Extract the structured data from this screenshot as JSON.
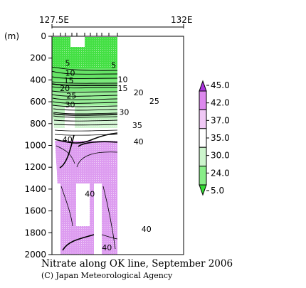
{
  "chart_data": {
    "type": "heatmap",
    "title": "Nitrate along OK line, September 2006",
    "credit": "(C) Japan Meteorological Agency",
    "xlabel": "",
    "ylabel": "(m)",
    "x_ticks": [
      "127.5E",
      "132E"
    ],
    "y_ticks": [
      0,
      200,
      400,
      600,
      800,
      1000,
      1200,
      1400,
      1600,
      1800,
      2000
    ],
    "ylim": [
      0,
      2000
    ],
    "y_reversed": true,
    "legend": {
      "levels": [
        5.0,
        24.0,
        30.0,
        35.0,
        37.0,
        42.0,
        45.0
      ],
      "labels": [
        "45.0",
        "42.0",
        "37.0",
        "35.0",
        "30.0",
        "24.0",
        "5.0"
      ],
      "colors_bottom_to_top": [
        "#33dd33",
        "#88ee88",
        "#ccf5cc",
        "#ffffff",
        "#f0c8f5",
        "#dd88ee",
        "#aa33dd"
      ],
      "placement": "right"
    },
    "contour_labels": [
      {
        "text": "5",
        "depth": 270,
        "offset": 0.1
      },
      {
        "text": "10",
        "depth": 360,
        "offset": 0.1
      },
      {
        "text": "15",
        "depth": 430,
        "offset": 0.09
      },
      {
        "text": "20",
        "depth": 500,
        "offset": 0.06
      },
      {
        "text": "25",
        "depth": 570,
        "offset": 0.11
      },
      {
        "text": "30",
        "depth": 650,
        "offset": 0.1
      },
      {
        "text": "5",
        "depth": 290,
        "offset": 0.45
      },
      {
        "text": "10",
        "depth": 420,
        "offset": 0.5
      },
      {
        "text": "15",
        "depth": 500,
        "offset": 0.5
      },
      {
        "text": "20",
        "depth": 540,
        "offset": 0.62
      },
      {
        "text": "25",
        "depth": 620,
        "offset": 0.74
      },
      {
        "text": "30",
        "depth": 720,
        "offset": 0.51
      },
      {
        "text": "35",
        "depth": 840,
        "offset": 0.61
      },
      {
        "text": "40",
        "depth": 970,
        "offset": 0.08
      },
      {
        "text": "40",
        "depth": 990,
        "offset": 0.62
      },
      {
        "text": "40",
        "depth": 1470,
        "offset": 0.25
      },
      {
        "text": "40",
        "depth": 1790,
        "offset": 0.68
      },
      {
        "text": "40",
        "depth": 1960,
        "offset": 0.38
      }
    ]
  }
}
